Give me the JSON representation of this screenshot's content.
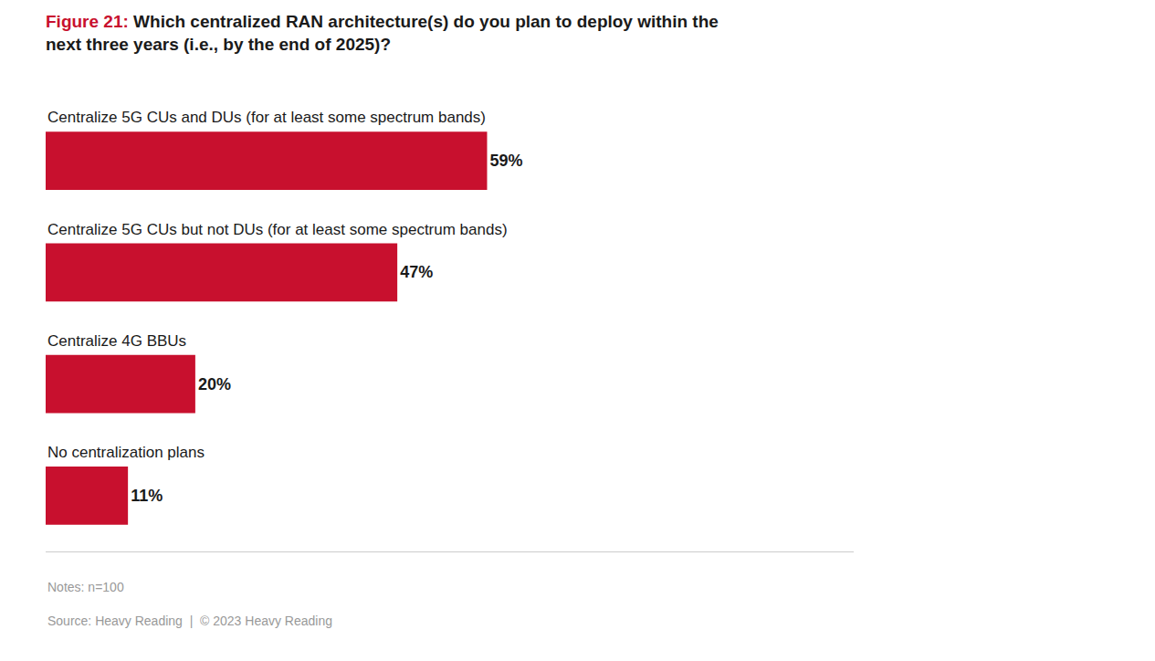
{
  "chart_data": {
    "type": "bar",
    "orientation": "horizontal",
    "title": "Figure 21: Which centralized RAN architecture(s) do you plan to deploy within the\nnext three years (i.e., by the end of 2025)?",
    "categories": [
      "Centralize 5G CUs and DUs (for at least some spectrum bands)",
      "Centralize 5G CUs but not DUs (for at least some spectrum bands)",
      "Centralize 4G BBUs",
      "No centralization plans"
    ],
    "values": [
      59,
      47,
      20,
      11
    ],
    "value_labels": [
      "59%",
      "47%",
      "20%",
      "11%"
    ],
    "data_labels": true,
    "color": "#c8102e",
    "xlim": [
      0,
      108
    ],
    "tick_labels": false,
    "grid": false,
    "annotations": [
      "Notes: n=100",
      "Source: Heavy Reading  |  © 2023 Heavy Reading"
    ]
  }
}
